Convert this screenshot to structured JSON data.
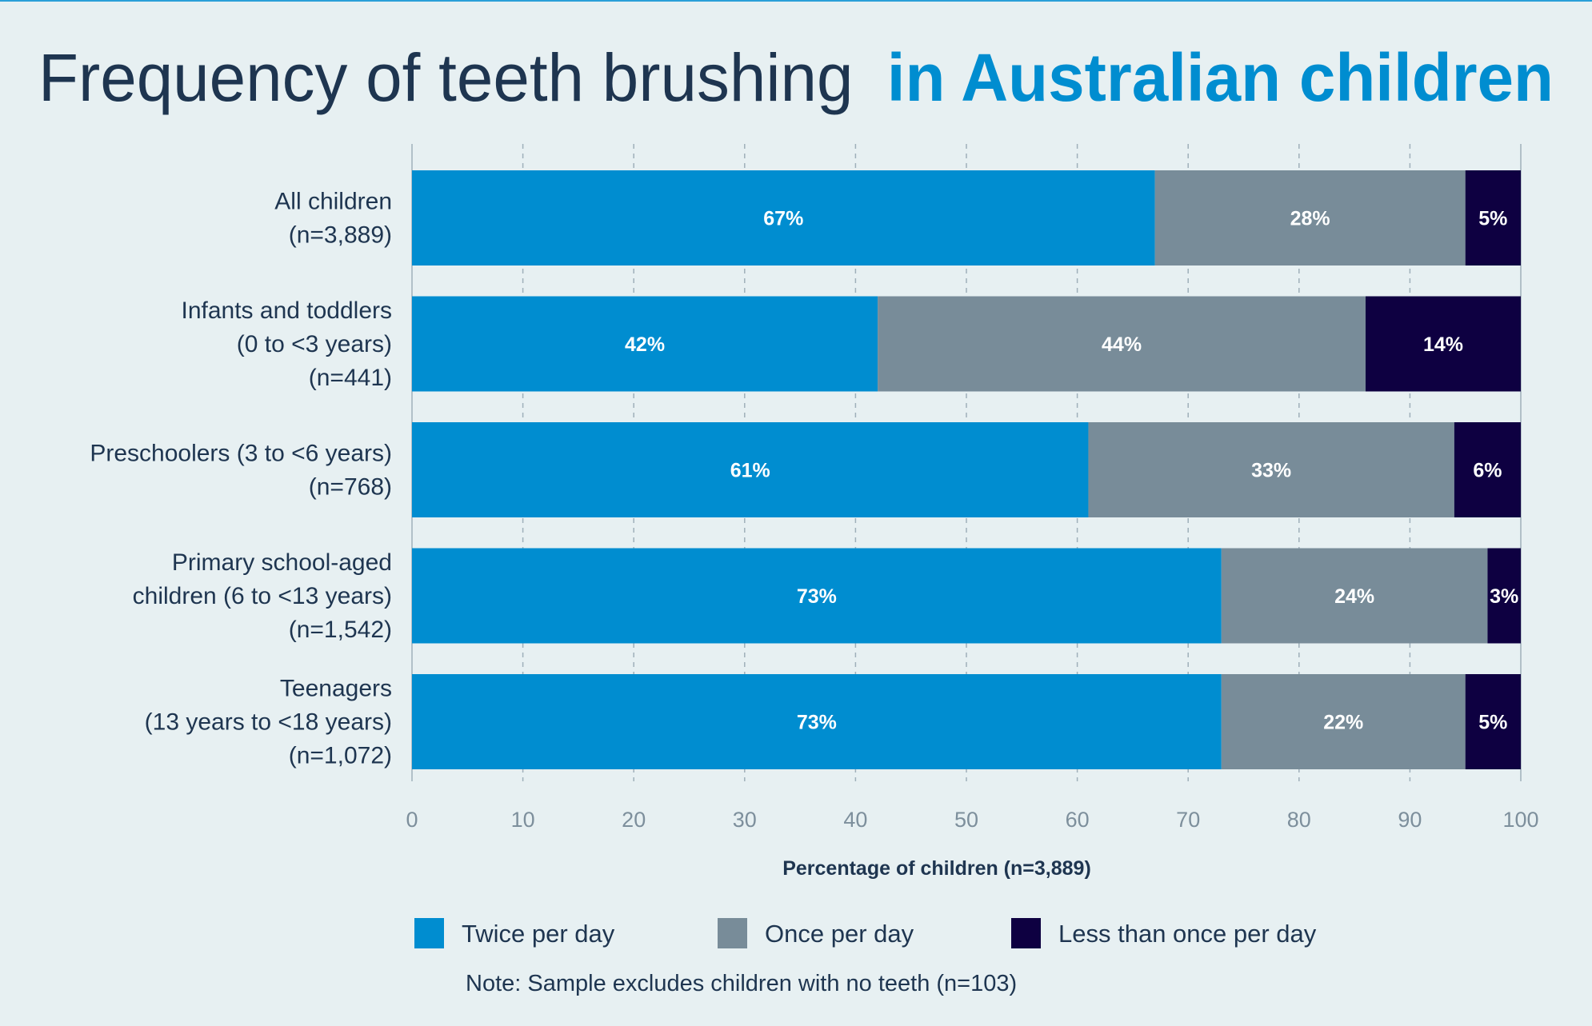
{
  "chart_data": {
    "type": "bar",
    "orientation": "horizontal",
    "stacked": true,
    "title": {
      "part1": "Frequency of teeth brushing",
      "part2": "in Australian children"
    },
    "categories": [
      [
        "All children",
        "(n=3,889)"
      ],
      [
        "Infants and toddlers",
        "(0 to <3 years)",
        "(n=441)"
      ],
      [
        "Preschoolers (3 to <6 years)",
        "(n=768)"
      ],
      [
        "Primary school-aged",
        "children (6 to <13 years)",
        "(n=1,542)"
      ],
      [
        "Teenagers",
        "(13 years to <18 years)",
        "(n=1,072)"
      ]
    ],
    "series": [
      {
        "name": "Twice per day",
        "color": "#008dd0",
        "values": [
          67,
          42,
          61,
          73,
          73
        ]
      },
      {
        "name": "Once per day",
        "color": "#788c99",
        "values": [
          28,
          44,
          33,
          24,
          22
        ]
      },
      {
        "name": "Less than once per day",
        "color": "#0e0041",
        "values": [
          5,
          14,
          6,
          3,
          5
        ]
      }
    ],
    "xlabel": "Percentage of children (n=3,889)",
    "xlim": [
      0,
      100
    ],
    "xticks": [
      0,
      10,
      20,
      30,
      40,
      50,
      60,
      70,
      80,
      90,
      100
    ],
    "grid": "vertical dashed",
    "legend_position": "bottom",
    "note": "Note: Sample excludes children with no teeth (n=103)",
    "colors": {
      "background": "#e7f0f2",
      "title_dark": "#1e3550",
      "title_accent": "#008dd0",
      "tick": "#7d8f9c"
    }
  }
}
